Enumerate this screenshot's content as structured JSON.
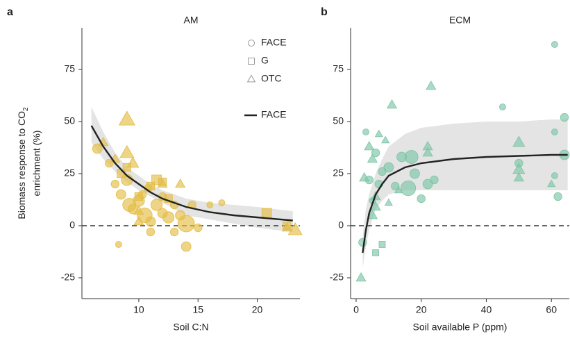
{
  "chart_data": [
    {
      "type": "scatter",
      "panel_label": "a",
      "title": "AM",
      "xlabel": "Soil C:N",
      "ylabel": [
        "Biomass response to CO",
        "2",
        "enrichment (%)"
      ],
      "xlim": [
        5.2,
        23.6
      ],
      "ylim": [
        -35,
        95
      ],
      "xticks": [
        10,
        15,
        20
      ],
      "yticks": [
        -25,
        0,
        25,
        50,
        75
      ],
      "hline": 0,
      "legend": true,
      "series": [
        {
          "name": "FACE",
          "marker": "circle",
          "color": "#e3bd45",
          "x": [
            6.5,
            7.5,
            8,
            8.3,
            8.5,
            9,
            9.2,
            9.5,
            10,
            10.3,
            10.5,
            10.8,
            11,
            11,
            11.5,
            12,
            12,
            12.5,
            13,
            13,
            13.5,
            14,
            14,
            14.5,
            15,
            16,
            17
          ],
          "values": [
            37,
            30,
            20,
            -9,
            15,
            22,
            10,
            8,
            12,
            15,
            5,
            18,
            2,
            -3,
            10,
            6,
            14,
            4,
            10,
            -3,
            5,
            1,
            -10,
            10,
            -1,
            10,
            11
          ],
          "sizes": [
            4,
            3,
            3,
            2,
            4,
            5,
            6,
            4,
            5,
            3,
            7,
            3,
            4,
            3,
            5,
            4,
            3,
            5,
            3,
            3,
            4,
            8,
            4,
            3,
            3,
            2,
            2
          ]
        },
        {
          "name": "G",
          "marker": "square",
          "color": "#e3bd45",
          "x": [
            8.5,
            9,
            10,
            11,
            11.5,
            12,
            12.5,
            20.8,
            22.5
          ],
          "values": [
            25,
            28,
            14,
            19,
            22,
            21,
            13,
            6,
            0
          ],
          "sizes": [
            3,
            3,
            3,
            3,
            4,
            3,
            3,
            4,
            3
          ]
        },
        {
          "name": "OTC",
          "marker": "triangle",
          "color": "#e3bd45",
          "x": [
            7,
            8,
            9,
            9,
            9.5,
            10,
            10,
            12,
            13.5,
            22.5,
            23.2
          ],
          "values": [
            40,
            32,
            51,
            35,
            30,
            2,
            7,
            20,
            20,
            -1,
            -2
          ],
          "sizes": [
            3,
            3,
            6,
            5,
            4,
            3,
            3,
            3,
            3,
            3,
            5
          ]
        }
      ],
      "fit": {
        "name": "FACE",
        "color": "#222222",
        "x": [
          6,
          7,
          8,
          9,
          10,
          11,
          12,
          14,
          16,
          18,
          20,
          23
        ],
        "values": [
          48,
          38,
          30,
          24,
          20,
          16,
          13,
          9,
          6.5,
          5,
          4,
          2.5
        ],
        "lower": [
          40,
          32,
          26,
          21,
          17,
          14,
          11,
          5,
          3,
          1,
          -1,
          -3
        ],
        "upper": [
          57,
          45,
          35,
          28,
          24,
          20,
          17,
          13,
          11,
          10,
          9,
          7
        ]
      }
    },
    {
      "type": "scatter",
      "panel_label": "b",
      "title": "ECM",
      "xlabel": "Soil available P (ppm)",
      "xlim": [
        -1.7,
        65.5
      ],
      "ylim": [
        -35,
        95
      ],
      "xticks": [
        0,
        20,
        40,
        60
      ],
      "yticks": [
        -25,
        0,
        25,
        50,
        75
      ],
      "hline": 0,
      "legend": false,
      "series": [
        {
          "name": "FACE",
          "marker": "circle",
          "color": "#7cc4a6",
          "x": [
            2,
            3,
            4,
            5,
            6,
            7,
            8,
            10,
            12,
            14,
            16,
            17,
            18,
            20,
            22,
            24,
            45,
            50,
            61,
            61,
            61,
            62,
            64,
            64
          ],
          "values": [
            -8,
            45,
            22,
            12,
            35,
            20,
            26,
            28,
            19,
            33,
            18,
            33,
            25,
            13,
            20,
            22,
            57,
            30,
            87,
            45,
            24,
            14,
            52,
            34
          ],
          "sizes": [
            3,
            2,
            3,
            2,
            3,
            3,
            3,
            4,
            3,
            4,
            7,
            6,
            4,
            3,
            4,
            3,
            2,
            3,
            2,
            2,
            2,
            3,
            3,
            4
          ]
        },
        {
          "name": "G",
          "marker": "square",
          "color": "#7cc4a6",
          "x": [
            6,
            8
          ],
          "values": [
            -13,
            -9
          ],
          "sizes": [
            2,
            2
          ]
        },
        {
          "name": "OTC",
          "marker": "triangle",
          "color": "#7cc4a6",
          "x": [
            1.5,
            2.5,
            4,
            5,
            5,
            6,
            6,
            7,
            9,
            10,
            11,
            13,
            22,
            22,
            23,
            50,
            50,
            50,
            60
          ],
          "values": [
            -25,
            23,
            38,
            32,
            5,
            9,
            14,
            44,
            41,
            11,
            58,
            17,
            38,
            35,
            67,
            40,
            27,
            23,
            20
          ],
          "sizes": [
            3,
            3,
            3,
            3,
            3,
            3,
            3,
            2,
            2,
            2,
            3,
            2,
            3,
            3,
            3,
            4,
            4,
            3,
            2
          ]
        }
      ],
      "fit": {
        "color": "#222222",
        "x": [
          2,
          3,
          4,
          6,
          8,
          10,
          15,
          20,
          30,
          40,
          50,
          60,
          65
        ],
        "values": [
          -13,
          -2,
          6,
          15,
          20,
          24,
          28,
          30,
          32,
          33,
          33.5,
          34,
          34
        ],
        "lower": [
          -20,
          -10,
          -2,
          8,
          12,
          15,
          17,
          17,
          17,
          17,
          17,
          17,
          17
        ],
        "upper": [
          -5,
          8,
          15,
          25,
          32,
          38,
          44,
          47,
          49,
          50,
          50,
          51,
          51
        ]
      }
    }
  ]
}
